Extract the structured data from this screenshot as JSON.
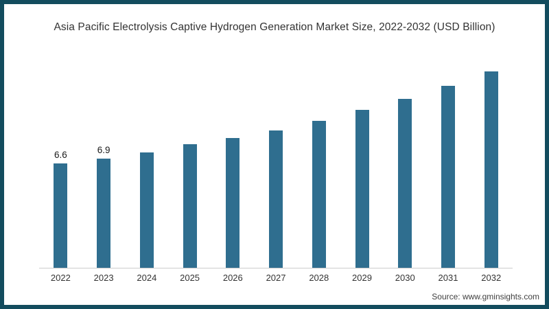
{
  "page": {
    "source": "Source: www.gminsights.com"
  },
  "colors": {
    "bar": "#2f6e8f",
    "frame_border": "#134c5e",
    "axis_line": "#cccccc",
    "text": "#333333"
  },
  "chart_data": {
    "type": "bar",
    "title": "Asia Pacific Electrolysis Captive Hydrogen Generation Market Size, 2022-2032 (USD Billion)",
    "categories": [
      "2022",
      "2023",
      "2024",
      "2025",
      "2026",
      "2027",
      "2028",
      "2029",
      "2030",
      "2031",
      "2032"
    ],
    "values": [
      6.6,
      6.9,
      7.3,
      7.8,
      8.2,
      8.7,
      9.3,
      10.0,
      10.7,
      11.5,
      12.4
    ],
    "data_labels": [
      "6.6",
      "6.9",
      "",
      "",
      "",
      "",
      "",
      "",
      "",
      "",
      ""
    ],
    "xlabel": "",
    "ylabel": "",
    "ylim": [
      0,
      13.5
    ],
    "grid": false,
    "legend": false,
    "units": "USD Billion"
  }
}
